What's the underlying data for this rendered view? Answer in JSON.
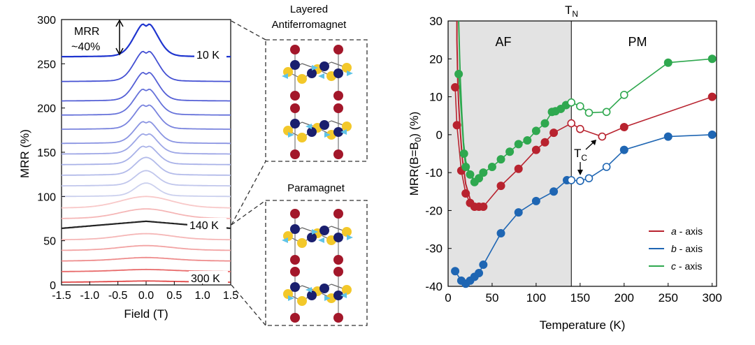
{
  "chart_data": [
    {
      "type": "line",
      "xlabel": "Field (T)",
      "ylabel": "MRR (%)",
      "xlim": [
        -1.5,
        1.5
      ],
      "ylim": [
        0,
        300
      ],
      "xticks": [
        "-1.5",
        "-1.0",
        "-0.5",
        "0.0",
        "0.5",
        "1.0",
        "1.5"
      ],
      "yticks": [
        "0",
        "50",
        "100",
        "150",
        "200",
        "250",
        "300"
      ],
      "curve_offsets": [
        4,
        16,
        28,
        40,
        52,
        64,
        76,
        88,
        100,
        112,
        124,
        136,
        148,
        160,
        176,
        192,
        208,
        230,
        258
      ],
      "curve_peaks": [
        0.5,
        1.5,
        3,
        4.5,
        6,
        8,
        10,
        12,
        14,
        16,
        19,
        21,
        23,
        25,
        28,
        30,
        33,
        35,
        38
      ],
      "curve_colors": [
        "#e04848",
        "#e86a6a",
        "#ee8b8b",
        "#f2a3a3",
        "#f5b6b6",
        "#222222",
        "#f5b6b6",
        "#f8c8c8",
        "#cbd0ee",
        "#c0c6ec",
        "#b3bbea",
        "#a8b1e8",
        "#9da6e6",
        "#8a94e2",
        "#7983de",
        "#6672da",
        "#5560d6",
        "#4450d3",
        "#1f35cf"
      ],
      "annotations": {
        "mrr_label_1": "MRR",
        "mrr_label_2": "~40%",
        "t10": "10 K",
        "t140": "140 K",
        "t300": "300 K"
      }
    },
    {
      "type": "scatter",
      "xlabel": "Temperature (K)",
      "ylabel_main": "MRR(B=B",
      "ylabel_sub": "0",
      "ylabel_end": ") (%)",
      "xlim": [
        0,
        305
      ],
      "ylim": [
        -40,
        30
      ],
      "xticks": [
        0,
        50,
        100,
        150,
        200,
        250,
        300
      ],
      "yticks": [
        -40,
        -30,
        -20,
        -10,
        0,
        10,
        20,
        30
      ],
      "shaded_region": [
        0,
        140
      ],
      "tn_value": 140,
      "tn_label_main": "T",
      "tn_label_sub": "N",
      "tc_label_main": "T",
      "tc_label_sub": "C",
      "region_labels": [
        "AF",
        "PM"
      ],
      "series": [
        {
          "name": "a - axis",
          "color": "#b8232f",
          "filled": [
            [
              8,
              12.5
            ],
            [
              10,
              2.5
            ],
            [
              15,
              -9.5
            ],
            [
              20,
              -15.5
            ],
            [
              25,
              -18
            ],
            [
              30,
              -19
            ],
            [
              35,
              -19
            ],
            [
              40,
              -19
            ],
            [
              60,
              -13.5
            ],
            [
              80,
              -9
            ],
            [
              100,
              -4
            ],
            [
              110,
              -2
            ],
            [
              120,
              0.5
            ]
          ],
          "open": [
            [
              140,
              3
            ],
            [
              150,
              1.5
            ],
            [
              175,
              -0.5
            ]
          ],
          "tail": [
            [
              200,
              2
            ],
            [
              300,
              10
            ]
          ],
          "curve": [
            [
              10,
              30
            ],
            [
              10,
              25
            ],
            [
              10.5,
              20
            ],
            [
              11,
              14
            ],
            [
              12,
              8
            ],
            [
              13.5,
              2
            ],
            [
              16,
              -6
            ],
            [
              20,
              -13
            ],
            [
              25,
              -17
            ],
            [
              30,
              -18.7
            ]
          ]
        },
        {
          "name": "b - axis",
          "color": "#1f66b3",
          "filled": [
            [
              8,
              -36
            ],
            [
              15,
              -38.5
            ],
            [
              20,
              -39.3
            ],
            [
              25,
              -38.5
            ],
            [
              30,
              -37.5
            ],
            [
              35,
              -36.5
            ],
            [
              40,
              -34.3
            ],
            [
              60,
              -26
            ],
            [
              80,
              -20.5
            ],
            [
              100,
              -17.5
            ],
            [
              120,
              -15
            ],
            [
              135,
              -12
            ]
          ],
          "open": [
            [
              140,
              -12
            ],
            [
              150,
              -12.2
            ],
            [
              160,
              -11.5
            ],
            [
              180,
              -8.5
            ]
          ],
          "tail": [
            [
              200,
              -4
            ],
            [
              250,
              -0.5
            ],
            [
              300,
              0
            ]
          ],
          "curve": []
        },
        {
          "name": "c - axis",
          "color": "#2fa84f",
          "filled": [
            [
              12,
              16
            ],
            [
              18,
              -5
            ],
            [
              20,
              -8.5
            ],
            [
              25,
              -10.5
            ],
            [
              30,
              -12.5
            ],
            [
              35,
              -11.5
            ],
            [
              40,
              -10
            ],
            [
              50,
              -8.5
            ],
            [
              60,
              -6.5
            ],
            [
              70,
              -4.5
            ],
            [
              80,
              -2.5
            ],
            [
              90,
              -1.5
            ],
            [
              100,
              1
            ],
            [
              110,
              3
            ],
            [
              118,
              6
            ],
            [
              122,
              6.2
            ],
            [
              128,
              6.8
            ],
            [
              134,
              7.8
            ]
          ],
          "open": [
            [
              140,
              8.5
            ],
            [
              150,
              7.5
            ],
            [
              160,
              5.8
            ],
            [
              180,
              6
            ],
            [
              200,
              10.5
            ]
          ],
          "tail": [
            [
              250,
              19
            ],
            [
              300,
              20
            ]
          ],
          "curve": [
            [
              12,
              30
            ],
            [
              12.5,
              26
            ],
            [
              13,
              21
            ],
            [
              14,
              14
            ],
            [
              15.5,
              6
            ],
            [
              17.5,
              -2
            ],
            [
              20,
              -7
            ],
            [
              24,
              -10
            ],
            [
              30,
              -12
            ]
          ]
        }
      ]
    }
  ],
  "diagrams": {
    "top_title_1": "Layered",
    "top_title_2": "Antiferromagnet",
    "bottom_title": "Paramagnet"
  }
}
